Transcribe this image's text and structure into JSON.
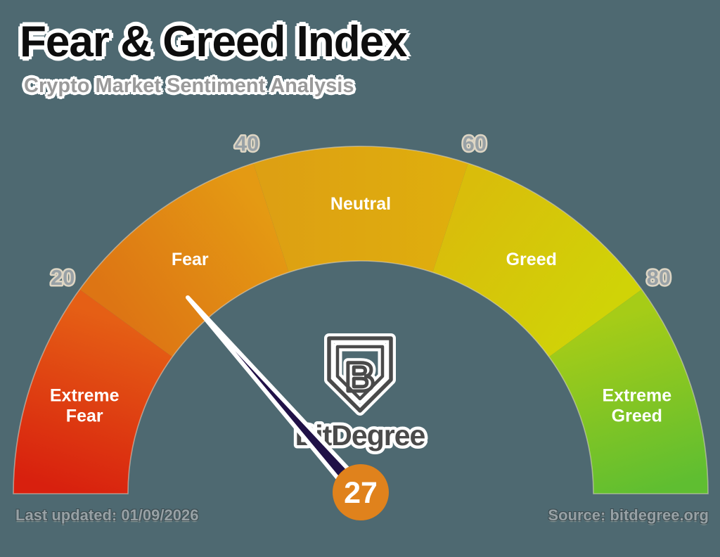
{
  "background_color": "#4e6971",
  "chart_data": {
    "type": "gauge",
    "title": "Fear & Greed Index",
    "subtitle": "Crypto Market Sentiment Analysis",
    "value": 27,
    "min": 0,
    "max": 100,
    "ticks": [
      20,
      40,
      60,
      80
    ],
    "segments": [
      {
        "label": "Extreme Fear",
        "lines": [
          "Extreme",
          "Fear"
        ],
        "from": 0,
        "to": 20,
        "color_start": "#d8200e",
        "color_end": "#e55f15"
      },
      {
        "label": "Fear",
        "lines": [
          "Fear"
        ],
        "from": 20,
        "to": 40,
        "color_start": "#dd7514",
        "color_end": "#e49a13"
      },
      {
        "label": "Neutral",
        "lines": [
          "Neutral"
        ],
        "from": 40,
        "to": 60,
        "color_start": "#dda013",
        "color_end": "#dfae0d"
      },
      {
        "label": "Greed",
        "lines": [
          "Greed"
        ],
        "from": 60,
        "to": 80,
        "color_start": "#d9bd0b",
        "color_end": "#d0d307"
      },
      {
        "label": "Extreme Greed",
        "lines": [
          "Extreme",
          "Greed"
        ],
        "from": 80,
        "to": 100,
        "color_start": "#a6cc17",
        "color_end": "#5fbe31"
      }
    ],
    "segment_label_color": "#ffffff",
    "tick_color": "#98a1a6",
    "tick_outline": "#ded6c4",
    "gauge_outline": "#ded6c4",
    "needle_color": "#201147",
    "needle_outline": "#ffffff",
    "badge_color": "#e0821c",
    "footer_left": "Last updated: 01/09/2026",
    "footer_right": "Source: bitdegree.org",
    "logo": {
      "brand": "BitDegree",
      "monogram": "B",
      "color": "#4a4a4a",
      "halo": "#ffffff"
    }
  }
}
